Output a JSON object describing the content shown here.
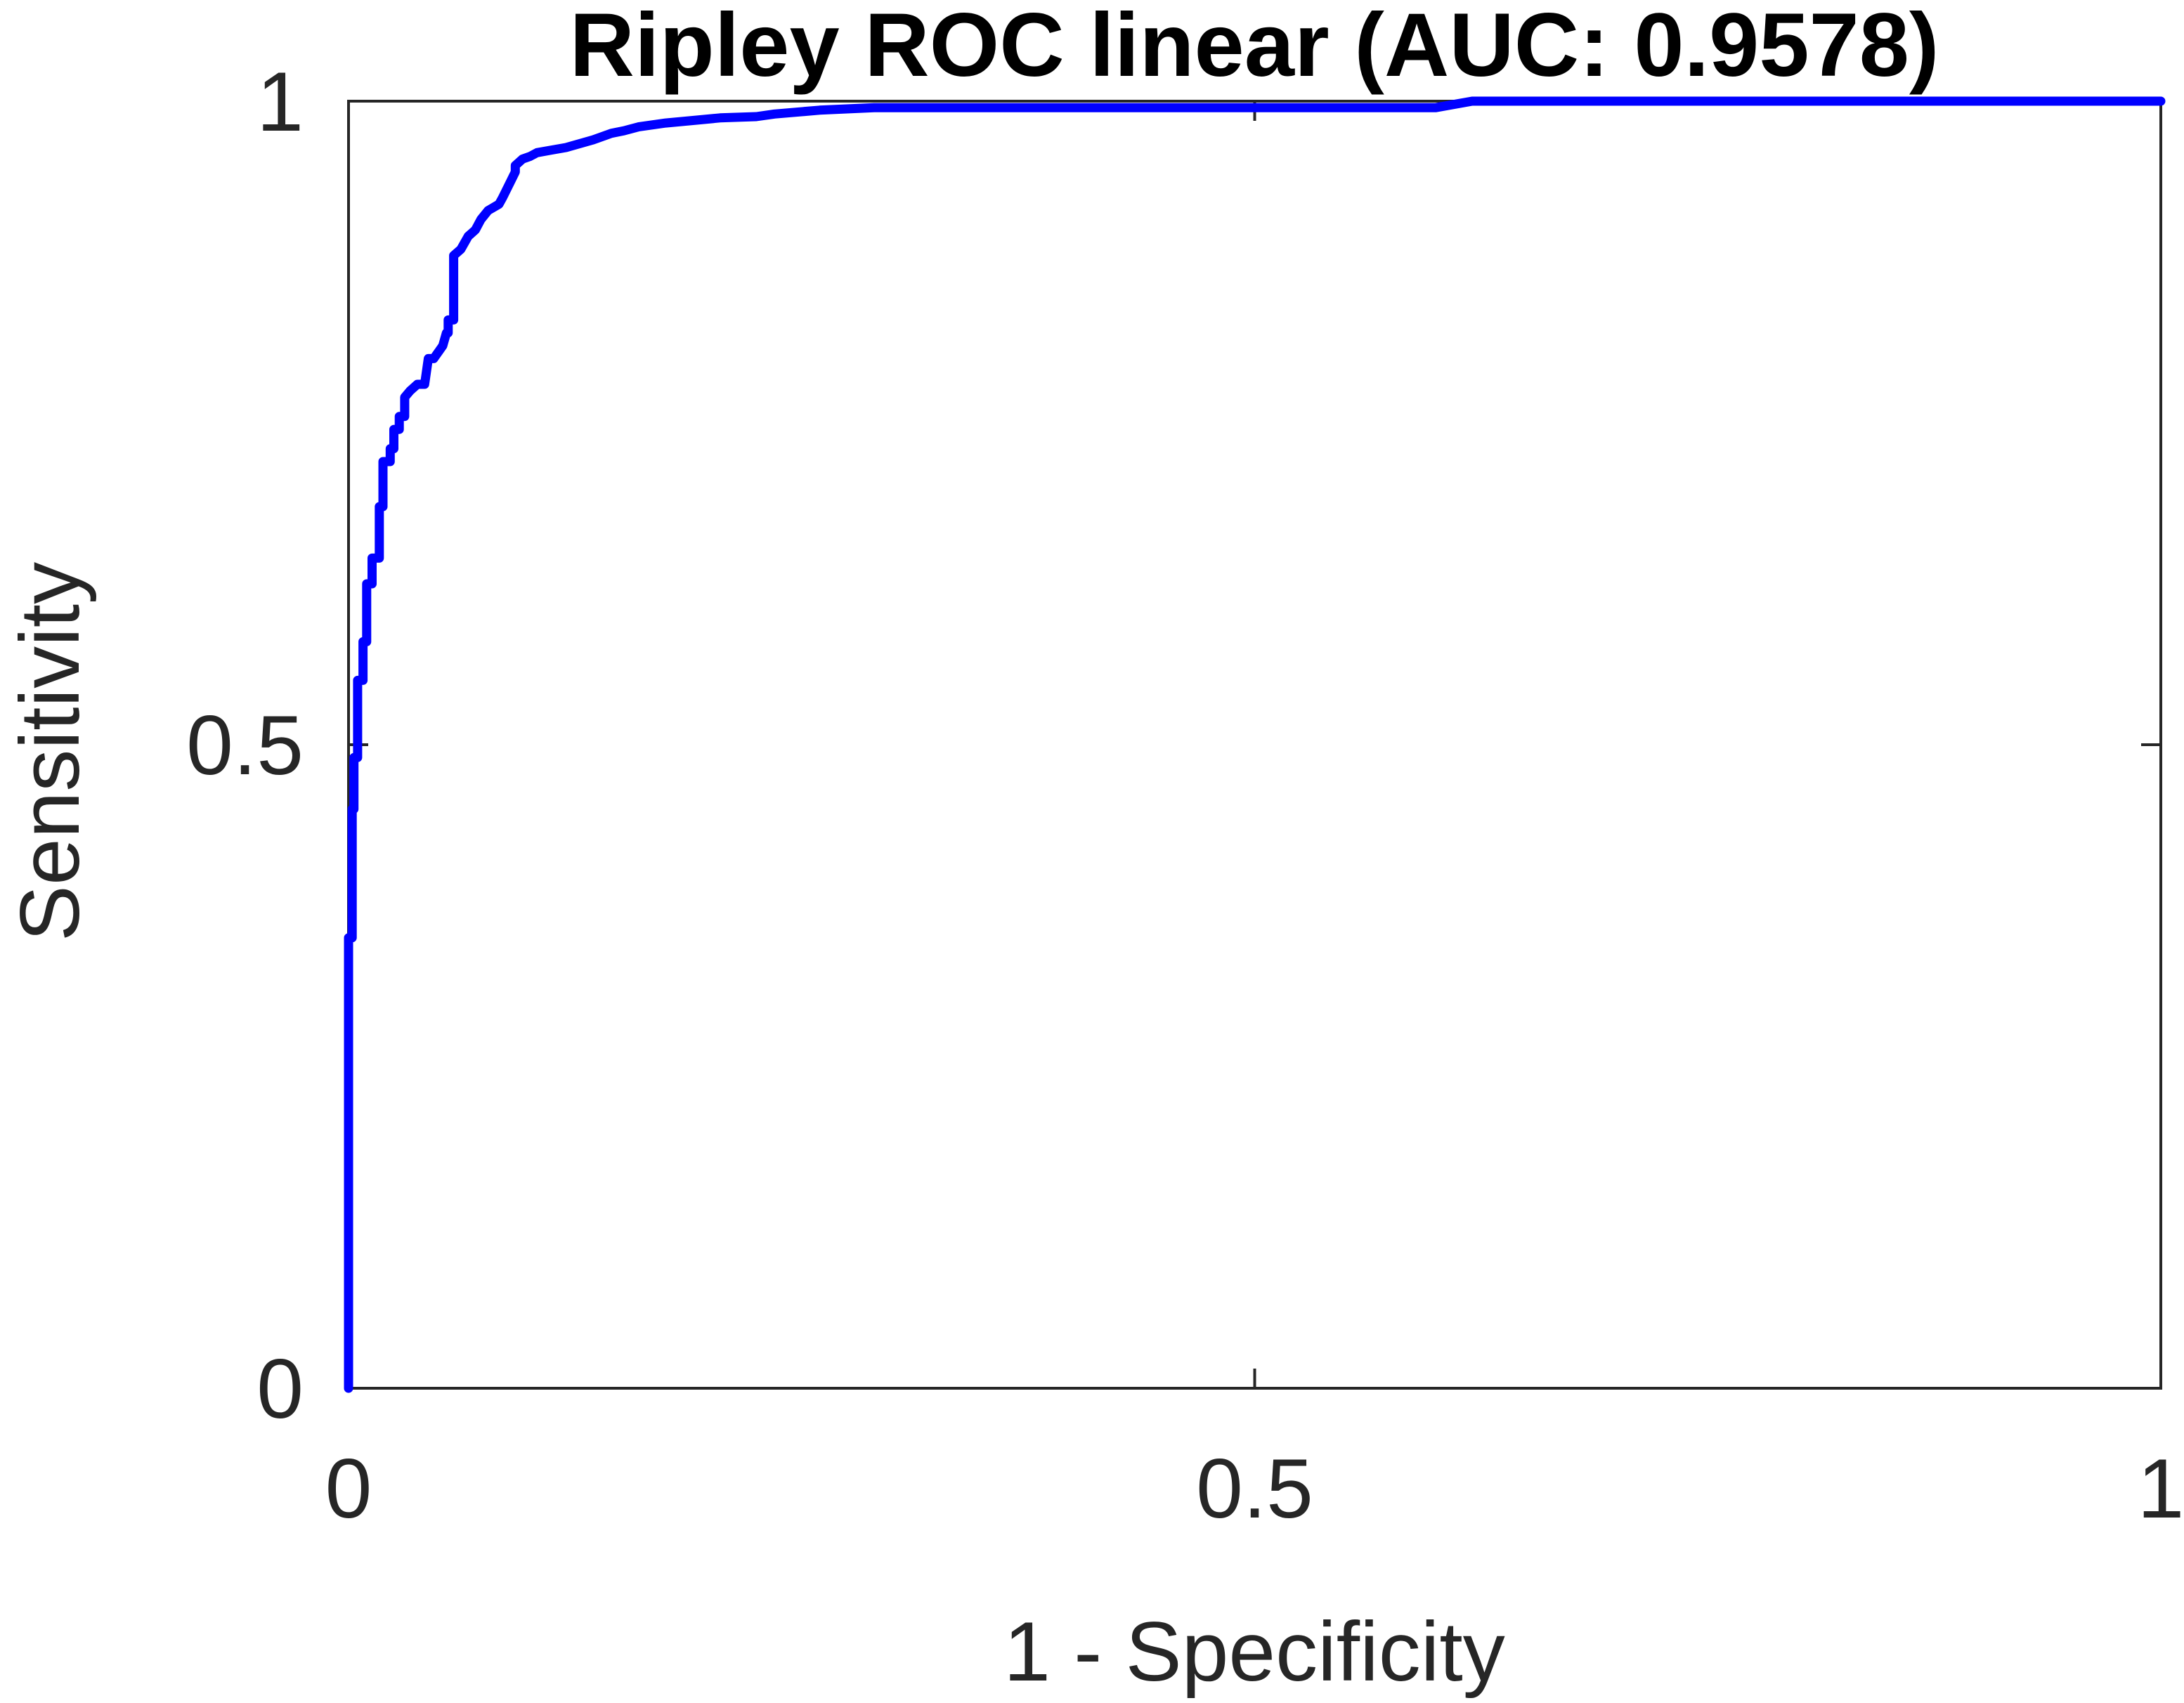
{
  "chart_data": {
    "type": "line",
    "title": "Ripley ROC linear (AUC: 0.9578)",
    "xlabel": "1 - Specificity",
    "ylabel": "Sensitivity",
    "xlim": [
      0,
      1
    ],
    "ylim": [
      0,
      1
    ],
    "xticks": [
      0,
      0.5,
      1
    ],
    "yticks": [
      0,
      0.5,
      1
    ],
    "xtick_labels": [
      "0",
      "0.5",
      "1"
    ],
    "ytick_labels": [
      "0",
      "0.5",
      "1"
    ],
    "grid": false,
    "legend": "none",
    "colors": {
      "series": "#0000ff",
      "axes": "#262626",
      "title": "#000000",
      "background": "#ffffff"
    },
    "series": [
      {
        "x": [
          0,
          0,
          0.002,
          0.002,
          0.003,
          0.003,
          0.005,
          0.005,
          0.008,
          0.008,
          0.01,
          0.01,
          0.013,
          0.013,
          0.017,
          0.017,
          0.019,
          0.019,
          0.023,
          0.023,
          0.025,
          0.025,
          0.028,
          0.028,
          0.031,
          0.031,
          0.034,
          0.038,
          0.042,
          0.044,
          0.047,
          0.052,
          0.054,
          0.055,
          0.055,
          0.058,
          0.058,
          0.062,
          0.066,
          0.07,
          0.073,
          0.077,
          0.083,
          0.085,
          0.092,
          0.092,
          0.096,
          0.1,
          0.104,
          0.112,
          0.12,
          0.135,
          0.145,
          0.152,
          0.16,
          0.175,
          0.19,
          0.205,
          0.225,
          0.235,
          0.26,
          0.275,
          0.29,
          0.3,
          0.31,
          0.315,
          0.335,
          0.345,
          0.36,
          0.375,
          0.385,
          0.41,
          0.44,
          0.48,
          0.5,
          0.52,
          0.525,
          0.55,
          0.58,
          0.6,
          0.62,
          0.65,
          0.7,
          0.75,
          0.8,
          0.9,
          1.0
        ],
        "y": [
          0,
          0.35,
          0.35,
          0.45,
          0.45,
          0.49,
          0.49,
          0.55,
          0.55,
          0.58,
          0.58,
          0.625,
          0.625,
          0.645,
          0.645,
          0.685,
          0.685,
          0.72,
          0.72,
          0.73,
          0.73,
          0.745,
          0.745,
          0.755,
          0.755,
          0.77,
          0.775,
          0.78,
          0.78,
          0.8,
          0.8,
          0.81,
          0.82,
          0.82,
          0.83,
          0.83,
          0.88,
          0.885,
          0.895,
          0.9,
          0.908,
          0.915,
          0.92,
          0.925,
          0.945,
          0.95,
          0.955,
          0.957,
          0.96,
          0.962,
          0.964,
          0.97,
          0.975,
          0.977,
          0.98,
          0.983,
          0.985,
          0.987,
          0.988,
          0.99,
          0.993,
          0.994,
          0.995,
          0.995,
          0.995,
          0.995,
          0.995,
          0.995,
          0.995,
          0.995,
          0.995,
          0.995,
          0.995,
          0.995,
          0.995,
          0.995,
          0.995,
          0.995,
          0.995,
          0.995,
          1.0,
          1.0,
          1.0,
          1.0,
          1.0,
          1.0,
          1.0
        ]
      }
    ]
  }
}
